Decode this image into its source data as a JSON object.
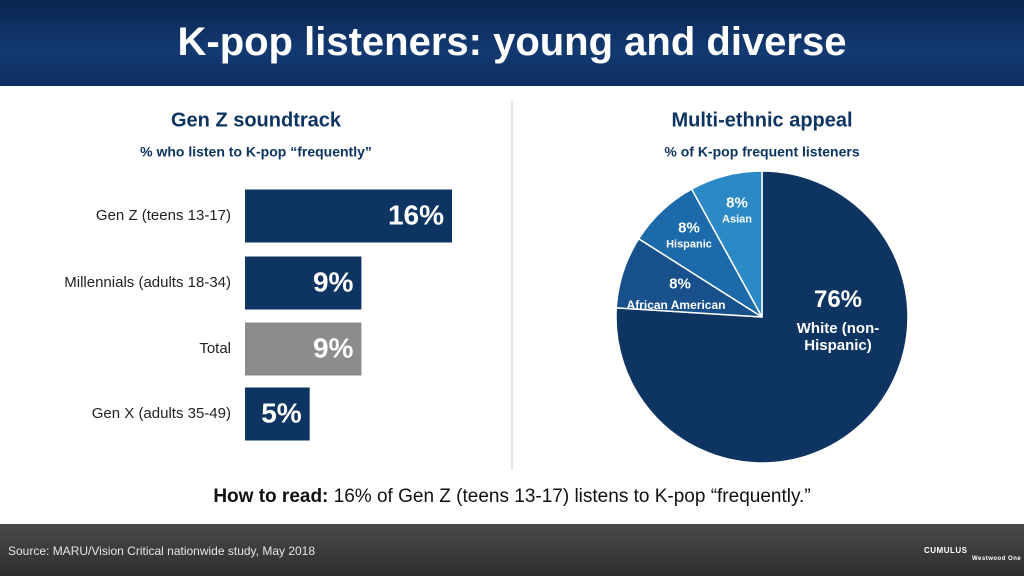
{
  "header": {
    "title": "K-pop listeners: young and diverse"
  },
  "chart_data": [
    {
      "type": "bar",
      "orientation": "horizontal",
      "title": "Gen Z soundtrack",
      "subtitle": "% who listen to K-pop “frequently”",
      "categories": [
        "Gen Z (teens 13-17)",
        "Millennials (adults 18-34)",
        "Total",
        "Gen X (adults 35-49)"
      ],
      "values": [
        16,
        9,
        9,
        5
      ],
      "value_labels": [
        "16%",
        "9%",
        "9%",
        "5%"
      ],
      "colors": [
        "#0e3461",
        "#0e3461",
        "#8c8c8c",
        "#0e3461"
      ]
    },
    {
      "type": "pie",
      "title": "Multi-ethnic appeal",
      "subtitle": "% of K-pop frequent listeners",
      "categories": [
        "White (non-Hispanic)",
        "African American",
        "Hispanic",
        "Asian"
      ],
      "values": [
        76,
        8,
        8,
        8
      ],
      "value_labels": [
        "76%",
        "8%",
        "8%",
        "8%"
      ],
      "colors": [
        "#0e3461",
        "#17508a",
        "#1d6aaa",
        "#2b8ac6"
      ]
    }
  ],
  "note": {
    "label": "How to read:",
    "text": "16% of Gen Z (teens 13-17) listens to K-pop “frequently.”"
  },
  "source": "Source: MARU/Vision Critical nationwide study, May 2018",
  "logos": [
    "CUMULUS",
    "Westwood One"
  ]
}
